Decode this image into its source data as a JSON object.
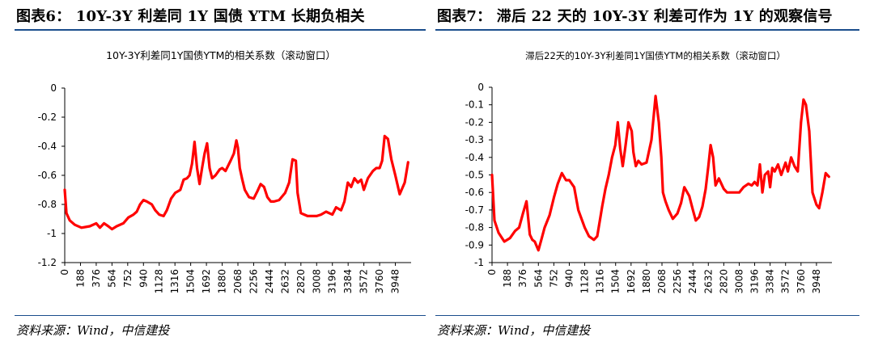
{
  "panels": [
    {
      "figure_title": "图表6：   10Y-3Y 利差同 1Y 国债 YTM 长期负相关",
      "source": "资料来源：Wind，中信建投"
    },
    {
      "figure_title": "图表7：   滞后 22 天的 10Y-3Y 利差可作为 1Y 的观察信号",
      "source": "资料来源：Wind，中信建投"
    }
  ],
  "chart_data": [
    {
      "type": "line",
      "title": "10Y-3Y利差同1Y国债YTM的相关系数（滚动窗口）",
      "xlabel": "",
      "ylabel": "",
      "ylim": [
        -1.2,
        0
      ],
      "yticks": [
        0,
        -0.2,
        -0.4,
        -0.6,
        -0.8,
        -1,
        -1.2
      ],
      "xlim": [
        0,
        4136
      ],
      "xticks": [
        0,
        188,
        376,
        564,
        752,
        940,
        1128,
        1316,
        1504,
        1692,
        1880,
        2068,
        2256,
        2444,
        2632,
        2820,
        3008,
        3196,
        3384,
        3572,
        3760,
        3948
      ],
      "grid": false,
      "legend": "none",
      "color": "#ff0000",
      "series": [
        {
          "x": [
            0,
            20,
            60,
            120,
            200,
            300,
            376,
            420,
            470,
            520,
            564,
            620,
            700,
            760,
            820,
            860,
            900,
            940,
            980,
            1040,
            1080,
            1128,
            1180,
            1220,
            1270,
            1320,
            1380,
            1420,
            1460,
            1490,
            1520,
            1550,
            1580,
            1610,
            1640,
            1670,
            1700,
            1730,
            1760,
            1800,
            1850,
            1880,
            1920,
            1980,
            2020,
            2050,
            2068,
            2090,
            2120,
            2150,
            2200,
            2256,
            2300,
            2340,
            2380,
            2420,
            2460,
            2500,
            2560,
            2632,
            2680,
            2720,
            2760,
            2780,
            2820,
            2860,
            2900,
            2950,
            3008,
            3060,
            3120,
            3196,
            3240,
            3300,
            3340,
            3380,
            3420,
            3460,
            3500,
            3540,
            3572,
            3620,
            3680,
            3720,
            3760,
            3790,
            3820,
            3860,
            3900,
            3948,
            4000,
            4060,
            4100
          ],
          "y": [
            -0.7,
            -0.86,
            -0.91,
            -0.94,
            -0.96,
            -0.95,
            -0.93,
            -0.96,
            -0.93,
            -0.95,
            -0.97,
            -0.95,
            -0.93,
            -0.89,
            -0.87,
            -0.85,
            -0.8,
            -0.77,
            -0.78,
            -0.8,
            -0.84,
            -0.87,
            -0.88,
            -0.84,
            -0.76,
            -0.72,
            -0.7,
            -0.63,
            -0.62,
            -0.6,
            -0.52,
            -0.37,
            -0.55,
            -0.66,
            -0.55,
            -0.45,
            -0.38,
            -0.55,
            -0.62,
            -0.6,
            -0.56,
            -0.55,
            -0.57,
            -0.5,
            -0.45,
            -0.36,
            -0.41,
            -0.55,
            -0.63,
            -0.7,
            -0.75,
            -0.76,
            -0.71,
            -0.66,
            -0.68,
            -0.75,
            -0.78,
            -0.78,
            -0.77,
            -0.72,
            -0.65,
            -0.49,
            -0.5,
            -0.72,
            -0.86,
            -0.87,
            -0.88,
            -0.88,
            -0.88,
            -0.87,
            -0.85,
            -0.87,
            -0.82,
            -0.84,
            -0.78,
            -0.65,
            -0.68,
            -0.62,
            -0.65,
            -0.63,
            -0.7,
            -0.62,
            -0.57,
            -0.55,
            -0.55,
            -0.5,
            -0.33,
            -0.35,
            -0.49,
            -0.6,
            -0.73,
            -0.65,
            -0.51
          ]
        }
      ]
    },
    {
      "type": "line",
      "title": "滞后22天的10Y-3Y利差同1Y国债YTM的相关系数（滚动窗口）",
      "xlabel": "",
      "ylabel": "",
      "ylim": [
        -1,
        0
      ],
      "yticks": [
        0,
        -0.1,
        -0.2,
        -0.3,
        -0.4,
        -0.5,
        -0.6,
        -0.7,
        -0.8,
        -0.9,
        -1
      ],
      "xlim": [
        0,
        4136
      ],
      "xticks": [
        0,
        188,
        376,
        564,
        752,
        940,
        1128,
        1316,
        1504,
        1692,
        1880,
        2068,
        2256,
        2444,
        2632,
        2820,
        3008,
        3196,
        3384,
        3572,
        3760,
        3948
      ],
      "grid": false,
      "legend": "none",
      "color": "#ff0000",
      "series": [
        {
          "x": [
            0,
            30,
            80,
            150,
            220,
            280,
            330,
            376,
            420,
            460,
            490,
            520,
            564,
            600,
            640,
            700,
            752,
            800,
            850,
            900,
            940,
            970,
            1000,
            1050,
            1128,
            1180,
            1240,
            1280,
            1316,
            1340,
            1380,
            1420,
            1460,
            1500,
            1530,
            1560,
            1590,
            1620,
            1660,
            1700,
            1720,
            1750,
            1780,
            1820,
            1880,
            1940,
            1990,
            2030,
            2060,
            2080,
            2110,
            2150,
            2200,
            2256,
            2300,
            2340,
            2400,
            2444,
            2480,
            2520,
            2560,
            2600,
            2632,
            2660,
            2690,
            2720,
            2760,
            2820,
            2860,
            2900,
            2950,
            3008,
            3060,
            3120,
            3160,
            3196,
            3230,
            3260,
            3290,
            3320,
            3360,
            3384,
            3410,
            3440,
            3480,
            3520,
            3572,
            3600,
            3640,
            3680,
            3720,
            3760,
            3790,
            3820,
            3860,
            3900,
            3948,
            3980,
            4020,
            4060,
            4100
          ],
          "y": [
            -0.5,
            -0.76,
            -0.83,
            -0.88,
            -0.86,
            -0.82,
            -0.8,
            -0.72,
            -0.65,
            -0.84,
            -0.87,
            -0.88,
            -0.93,
            -0.87,
            -0.8,
            -0.73,
            -0.63,
            -0.55,
            -0.49,
            -0.53,
            -0.53,
            -0.55,
            -0.57,
            -0.7,
            -0.8,
            -0.85,
            -0.87,
            -0.85,
            -0.75,
            -0.68,
            -0.58,
            -0.5,
            -0.4,
            -0.33,
            -0.2,
            -0.35,
            -0.45,
            -0.35,
            -0.2,
            -0.25,
            -0.37,
            -0.45,
            -0.42,
            -0.44,
            -0.43,
            -0.3,
            -0.05,
            -0.2,
            -0.4,
            -0.6,
            -0.65,
            -0.7,
            -0.75,
            -0.72,
            -0.66,
            -0.57,
            -0.62,
            -0.7,
            -0.76,
            -0.74,
            -0.68,
            -0.58,
            -0.45,
            -0.33,
            -0.4,
            -0.56,
            -0.52,
            -0.58,
            -0.6,
            -0.6,
            -0.6,
            -0.6,
            -0.57,
            -0.55,
            -0.56,
            -0.54,
            -0.56,
            -0.44,
            -0.6,
            -0.5,
            -0.48,
            -0.57,
            -0.46,
            -0.48,
            -0.44,
            -0.5,
            -0.43,
            -0.48,
            -0.4,
            -0.45,
            -0.48,
            -0.2,
            -0.07,
            -0.1,
            -0.25,
            -0.6,
            -0.67,
            -0.69,
            -0.6,
            -0.49,
            -0.51
          ]
        }
      ]
    }
  ]
}
